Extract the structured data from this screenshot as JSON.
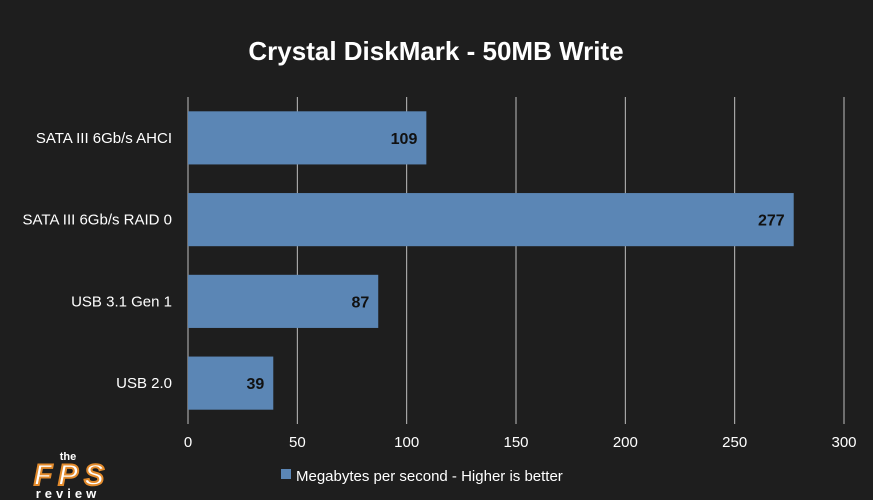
{
  "chart_data": {
    "type": "bar",
    "orientation": "horizontal",
    "title": "Crystal DiskMark - 50MB Write",
    "categories": [
      "SATA III 6Gb/s AHCI",
      "SATA III 6Gb/s RAID 0",
      "USB 3.1 Gen 1",
      "USB 2.0"
    ],
    "series": [
      {
        "name": "Megabytes per second - Higher is better",
        "values": [
          109,
          277,
          87,
          39
        ]
      }
    ],
    "xlim": [
      0,
      300
    ],
    "xticks": [
      0,
      50,
      100,
      150,
      200,
      250,
      300
    ],
    "grid": "vertical",
    "legend": "bottom",
    "colors": {
      "bar": "#5b86b5",
      "background": "#1e1e1e",
      "grid": "#bfbfbf"
    }
  },
  "logo": {
    "text_top": "the",
    "text_main": "FPS",
    "text_bottom": "review"
  }
}
